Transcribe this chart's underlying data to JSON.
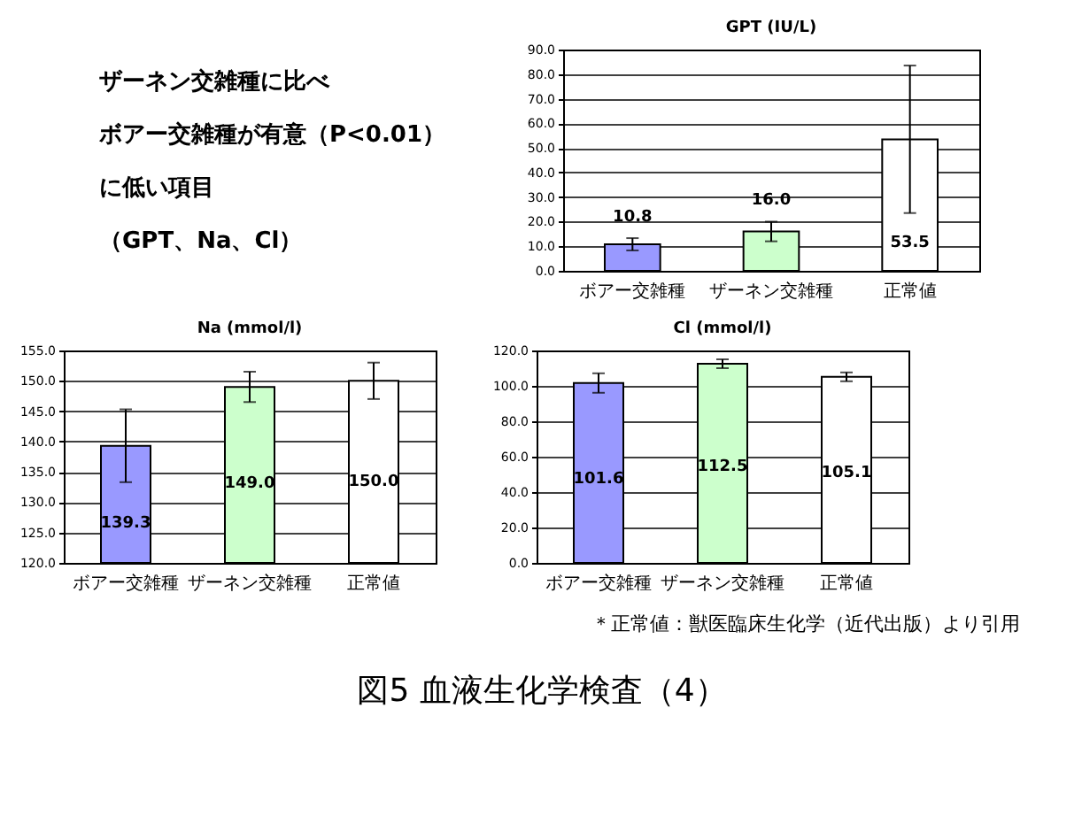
{
  "chart_data": [
    {
      "type": "other",
      "annotations": [
        "ザーネン交雑種に比べ",
        "ボアー交雑種が有意（P<0.01）",
        "に低い項目",
        "（GPT、Na、Cl）"
      ]
    },
    {
      "type": "bar",
      "title": "GPT (IU/L)",
      "categories": [
        "ボアー交雑種",
        "ザーネン交雑種",
        "正常値"
      ],
      "values": [
        10.8,
        16.0,
        53.5
      ],
      "colors": [
        "#9999ff",
        "#ccffcc",
        "#ffffff"
      ],
      "errors": [
        2.5,
        4.0,
        30.0
      ],
      "value_labels": [
        "10.8",
        "16.0",
        "53.5"
      ],
      "ylim": [
        0,
        90
      ],
      "yticks": [
        {
          "value": 0,
          "label": "0.0"
        },
        {
          "value": 10,
          "label": "10.0"
        },
        {
          "value": 20,
          "label": "20.0"
        },
        {
          "value": 30,
          "label": "30.0"
        },
        {
          "value": 40,
          "label": "40.0"
        },
        {
          "value": 50,
          "label": "50.0"
        },
        {
          "value": 60,
          "label": "60.0"
        },
        {
          "value": 70,
          "label": "70.0"
        },
        {
          "value": 80,
          "label": "80.0"
        },
        {
          "value": 90,
          "label": "90.0"
        }
      ],
      "grid": "y"
    },
    {
      "type": "bar",
      "title": "Na (mmol/l)",
      "categories": [
        "ボアー交雑種",
        "ザーネン交雑種",
        "正常値"
      ],
      "values": [
        139.3,
        149.0,
        150.0
      ],
      "colors": [
        "#9999ff",
        "#ccffcc",
        "#ffffff"
      ],
      "errors": [
        6.0,
        2.5,
        3.0
      ],
      "value_labels": [
        "139.3",
        "149.0",
        "150.0"
      ],
      "ylim": [
        120,
        155
      ],
      "yticks": [
        {
          "value": 120,
          "label": "120.0"
        },
        {
          "value": 125,
          "label": "125.0"
        },
        {
          "value": 130,
          "label": "130.0"
        },
        {
          "value": 135,
          "label": "135.0"
        },
        {
          "value": 140,
          "label": "140.0"
        },
        {
          "value": 145,
          "label": "145.0"
        },
        {
          "value": 150,
          "label": "150.0"
        },
        {
          "value": 155,
          "label": "155.0"
        }
      ],
      "grid": "y"
    },
    {
      "type": "bar",
      "title": "Cl (mmol/l)",
      "categories": [
        "ボアー交雑種",
        "ザーネン交雑種",
        "正常値"
      ],
      "values": [
        101.6,
        112.5,
        105.1
      ],
      "colors": [
        "#9999ff",
        "#ccffcc",
        "#ffffff"
      ],
      "errors": [
        5.5,
        2.5,
        2.5
      ],
      "value_labels": [
        "101.6",
        "112.5",
        "105.1"
      ],
      "ylim": [
        0,
        120
      ],
      "yticks": [
        {
          "value": 0,
          "label": "0.0"
        },
        {
          "value": 20,
          "label": "20.0"
        },
        {
          "value": 40,
          "label": "40.0"
        },
        {
          "value": 60,
          "label": "60.0"
        },
        {
          "value": 80,
          "label": "80.0"
        },
        {
          "value": 100,
          "label": "100.0"
        },
        {
          "value": 120,
          "label": "120.0"
        }
      ],
      "grid": "y"
    },
    {
      "type": "other",
      "title": "図5 血液生化学検査（4）",
      "annotations": [
        "＊正常値：獣医臨床生化学（近代出版）より引用"
      ]
    }
  ]
}
